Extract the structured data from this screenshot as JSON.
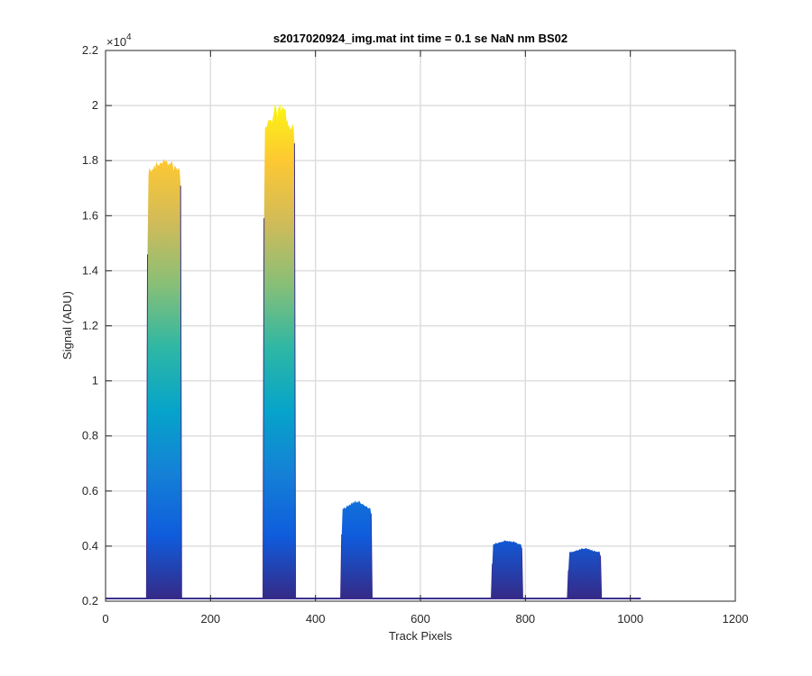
{
  "chart_data": {
    "type": "area",
    "title": "s2017020924_img.mat int time = 0.1 se  NaN nm BS02",
    "xlabel": "Track Pixels",
    "ylabel": "Signal (ADU)",
    "xlim": [
      0,
      1200
    ],
    "ylim": [
      2000,
      22000
    ],
    "y_exponent_label": "×10",
    "y_exponent_power": "4",
    "x_ticks": [
      0,
      200,
      400,
      600,
      800,
      1000,
      1200
    ],
    "x_tick_labels": [
      "0",
      "200",
      "400",
      "600",
      "800",
      "1000",
      "1200"
    ],
    "y_ticks": [
      2000,
      4000,
      6000,
      8000,
      10000,
      12000,
      14000,
      16000,
      18000,
      20000,
      22000
    ],
    "y_tick_labels": [
      "0.2",
      "0.4",
      "0.6",
      "0.8",
      "1",
      "1.2",
      "1.4",
      "1.6",
      "1.8",
      "2",
      "2.2"
    ],
    "grid": true,
    "colormap": [
      "#352a87",
      "#0f5cdd",
      "#1481d6",
      "#06a4ca",
      "#2eb7a4",
      "#87bf77",
      "#d1bb59",
      "#fec832",
      "#f9fb0e"
    ],
    "outline_color": "#3b2f8f",
    "baseline": {
      "x_start": 0,
      "x_end": 1020,
      "value": 2100
    },
    "peaks": [
      {
        "x_start": 78,
        "x_end": 145,
        "max": 18200,
        "plateau": 17800
      },
      {
        "x_start": 300,
        "x_end": 362,
        "max": 20300,
        "plateau": 19400
      },
      {
        "x_start": 448,
        "x_end": 508,
        "max": 5700,
        "plateau": 5400
      },
      {
        "x_start": 735,
        "x_end": 795,
        "max": 4250,
        "plateau": 4100
      },
      {
        "x_start": 880,
        "x_end": 945,
        "max": 3950,
        "plateau": 3800
      }
    ]
  }
}
